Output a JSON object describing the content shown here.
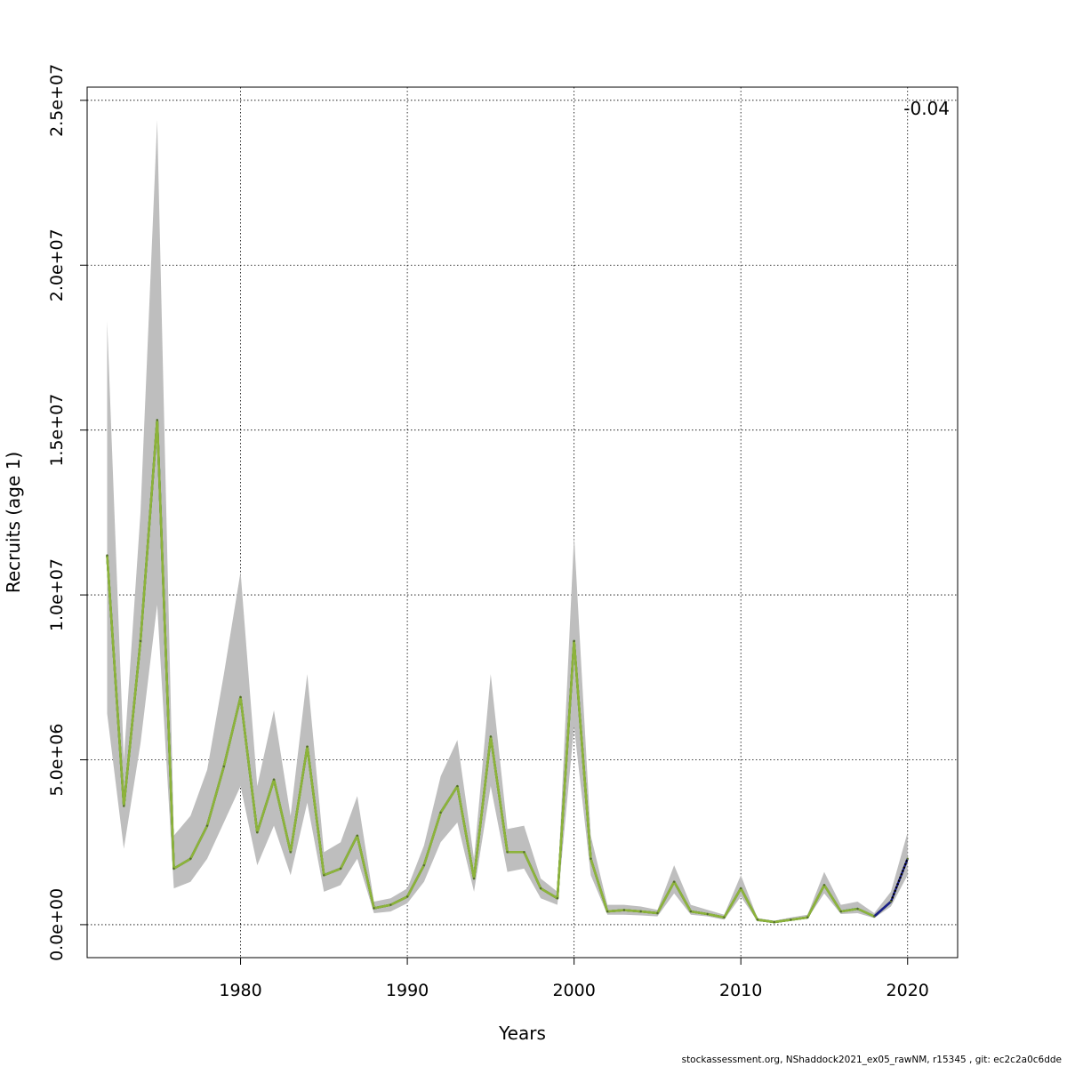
{
  "chart_data": {
    "type": "line",
    "title": "",
    "xlabel": "Years",
    "ylabel": "Recruits (age 1)",
    "xlim": [
      1970.8,
      2023
    ],
    "ylim": [
      -1000000,
      25400000
    ],
    "x_ticks": [
      1980,
      1990,
      2000,
      2010,
      2020
    ],
    "x_tick_labels": [
      "1980",
      "1990",
      "2000",
      "2010",
      "2020"
    ],
    "y_ticks": [
      0,
      5000000,
      10000000,
      15000000,
      20000000,
      25000000
    ],
    "y_tick_labels": [
      "0.0e+00",
      "5.0e+06",
      "1.0e+07",
      "1.5e+07",
      "2.0e+07",
      "2.5e+07"
    ],
    "grid": true,
    "annotation": "-0.04",
    "colors": {
      "band": "#bebebe",
      "peel_colors": [
        "#1b1f8a",
        "#2f6fb0",
        "#56b4d9",
        "#1a8a3a",
        "#8db33a",
        "#556b2f"
      ],
      "main_line": "#8db33a",
      "projection_line": "#000000"
    },
    "band": {
      "x": [
        1972,
        1973,
        1974,
        1975,
        1976,
        1977,
        1978,
        1979,
        1980,
        1981,
        1982,
        1983,
        1984,
        1985,
        1986,
        1987,
        1988,
        1989,
        1990,
        1991,
        1992,
        1993,
        1994,
        1995,
        1996,
        1997,
        1998,
        1999,
        2000,
        2001,
        2002,
        2003,
        2004,
        2005,
        2006,
        2007,
        2008,
        2009,
        2010,
        2011,
        2012,
        2013,
        2014,
        2015,
        2016,
        2017,
        2018,
        2019,
        2020
      ],
      "upper": [
        18300000,
        5000000,
        12500000,
        24400000,
        2700000,
        3300000,
        4700000,
        7600000,
        10700000,
        4200000,
        6500000,
        3300000,
        7600000,
        2200000,
        2500000,
        3900000,
        700000,
        800000,
        1100000,
        2400000,
        4500000,
        5600000,
        2000000,
        7600000,
        2900000,
        3000000,
        1400000,
        1000000,
        11800000,
        2700000,
        600000,
        600000,
        550000,
        450000,
        1800000,
        600000,
        450000,
        300000,
        1500000,
        200000,
        120000,
        220000,
        300000,
        1600000,
        600000,
        700000,
        350000,
        1000000,
        2800000
      ],
      "lower": [
        6400000,
        2300000,
        5500000,
        9700000,
        1100000,
        1300000,
        2000000,
        3100000,
        4200000,
        1800000,
        3000000,
        1500000,
        3700000,
        1000000,
        1200000,
        2000000,
        350000,
        400000,
        650000,
        1300000,
        2500000,
        3100000,
        1000000,
        4200000,
        1600000,
        1700000,
        800000,
        600000,
        6000000,
        1500000,
        300000,
        300000,
        280000,
        250000,
        950000,
        300000,
        250000,
        150000,
        850000,
        100000,
        60000,
        120000,
        180000,
        950000,
        320000,
        350000,
        200000,
        550000,
        1500000
      ]
    },
    "series": [
      {
        "x": [
          1972,
          1973,
          1974,
          1975,
          1976,
          1977,
          1978,
          1979,
          1980,
          1981,
          1982,
          1983,
          1984,
          1985,
          1986,
          1987,
          1988,
          1989,
          1990,
          1991,
          1992,
          1993,
          1994,
          1995,
          1996,
          1997,
          1998,
          1999,
          2000,
          2001,
          2002,
          2003,
          2004,
          2005,
          2006,
          2007,
          2008,
          2009,
          2010,
          2011,
          2012,
          2013,
          2014,
          2015,
          2016,
          2017,
          2018,
          2019,
          2020
        ],
        "values": [
          11200000,
          3600000,
          8600000,
          15300000,
          1700000,
          2000000,
          3000000,
          4800000,
          6900000,
          2800000,
          4400000,
          2200000,
          5400000,
          1500000,
          1700000,
          2700000,
          500000,
          600000,
          850000,
          1800000,
          3400000,
          4200000,
          1400000,
          5700000,
          2200000,
          2200000,
          1100000,
          800000,
          8600000,
          2000000,
          400000,
          440000,
          400000,
          350000,
          1300000,
          400000,
          320000,
          220000,
          1100000,
          150000,
          80000,
          150000,
          220000,
          1200000,
          400000,
          480000,
          250000,
          700000,
          2000000
        ]
      }
    ]
  },
  "footer_text": "stockassessment.org, NShaddock2021_ex05_rawNM, r15345 , git: ec2c2a0c6dde"
}
